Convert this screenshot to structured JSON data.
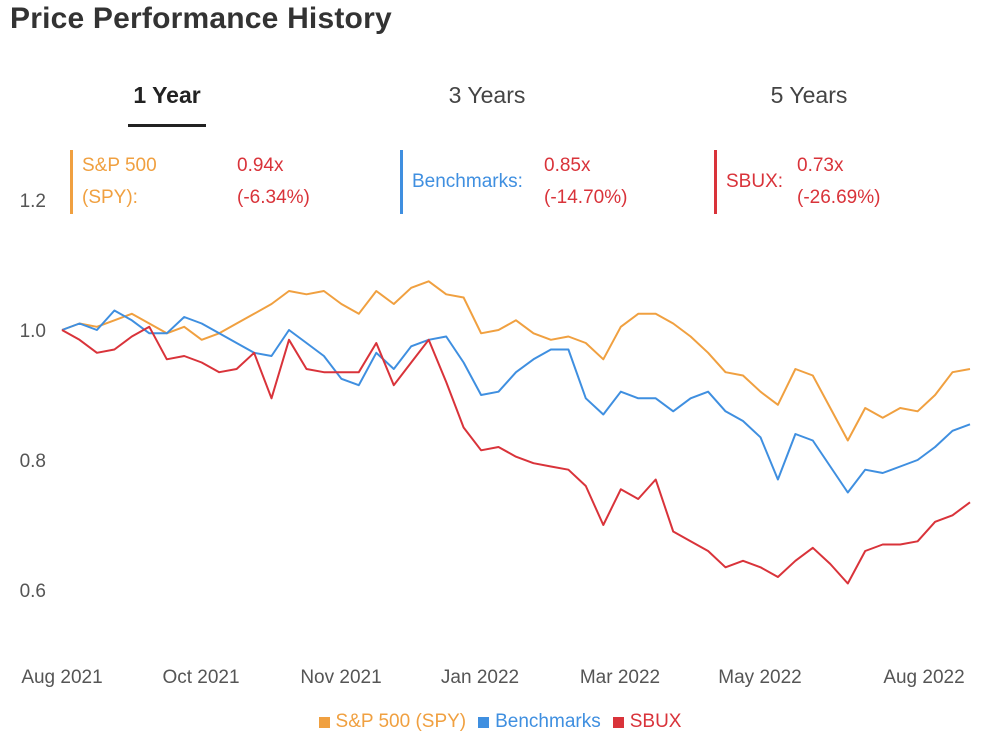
{
  "page": {
    "title": "Price Performance History"
  },
  "tabs": [
    {
      "label": "1 Year",
      "active": true
    },
    {
      "label": "3 Years",
      "active": false
    },
    {
      "label": "5 Years",
      "active": false
    }
  ],
  "stats": [
    {
      "name_line1": "S&P 500",
      "name_line2": "(SPY):",
      "multiple": "0.94x",
      "change": "(-6.34%)",
      "color": "#f0a040"
    },
    {
      "name_line1": "Benchmarks:",
      "multiple": "0.85x",
      "change": "(-14.70%)",
      "color": "#3f8fe0"
    },
    {
      "name_line1": "SBUX:",
      "multiple": "0.73x",
      "change": "(-26.69%)",
      "color": "#d9333a"
    }
  ],
  "chart_data": {
    "type": "line",
    "title": "Price Performance History",
    "xlabel": "",
    "ylabel": "",
    "ylim": [
      0.48,
      1.32
    ],
    "x_ticks": [
      "Aug 2021",
      "Oct 2021",
      "Nov 2021",
      "Jan 2022",
      "Mar 2022",
      "May 2022",
      "Aug 2022"
    ],
    "y_ticks": [
      "1.2",
      "1.0",
      "0.8",
      "0.6"
    ],
    "y_tick_values": [
      1.2,
      1.0,
      0.8,
      0.6
    ],
    "grid": false,
    "legend_position": "bottom-center",
    "series": [
      {
        "name": "S&P 500 (SPY)",
        "color": "#f0a040",
        "values": [
          1.0,
          1.01,
          1.005,
          1.015,
          1.025,
          1.01,
          0.995,
          1.005,
          0.985,
          0.995,
          1.01,
          1.025,
          1.04,
          1.06,
          1.055,
          1.06,
          1.04,
          1.025,
          1.06,
          1.04,
          1.065,
          1.075,
          1.055,
          1.05,
          0.995,
          1.0,
          1.015,
          0.995,
          0.985,
          0.99,
          0.98,
          0.955,
          1.005,
          1.025,
          1.025,
          1.01,
          0.99,
          0.965,
          0.935,
          0.93,
          0.905,
          0.885,
          0.94,
          0.93,
          0.88,
          0.83,
          0.88,
          0.865,
          0.88,
          0.875,
          0.9,
          0.935,
          0.94
        ]
      },
      {
        "name": "Benchmarks",
        "color": "#3f8fe0",
        "values": [
          1.0,
          1.01,
          1.0,
          1.03,
          1.015,
          0.995,
          0.995,
          1.02,
          1.01,
          0.995,
          0.98,
          0.965,
          0.96,
          1.0,
          0.98,
          0.96,
          0.925,
          0.915,
          0.965,
          0.94,
          0.975,
          0.985,
          0.99,
          0.95,
          0.9,
          0.905,
          0.935,
          0.955,
          0.97,
          0.97,
          0.895,
          0.87,
          0.905,
          0.895,
          0.895,
          0.875,
          0.895,
          0.905,
          0.875,
          0.86,
          0.835,
          0.77,
          0.84,
          0.83,
          0.79,
          0.75,
          0.785,
          0.78,
          0.79,
          0.8,
          0.82,
          0.845,
          0.855
        ]
      },
      {
        "name": "SBUX",
        "color": "#d9333a",
        "values": [
          1.0,
          0.985,
          0.965,
          0.97,
          0.99,
          1.005,
          0.955,
          0.96,
          0.95,
          0.935,
          0.94,
          0.965,
          0.895,
          0.985,
          0.94,
          0.935,
          0.935,
          0.935,
          0.98,
          0.915,
          0.95,
          0.985,
          0.92,
          0.85,
          0.815,
          0.82,
          0.805,
          0.795,
          0.79,
          0.785,
          0.76,
          0.7,
          0.755,
          0.74,
          0.77,
          0.69,
          0.675,
          0.66,
          0.635,
          0.645,
          0.635,
          0.62,
          0.645,
          0.665,
          0.64,
          0.61,
          0.66,
          0.67,
          0.67,
          0.675,
          0.705,
          0.715,
          0.735
        ]
      }
    ]
  }
}
